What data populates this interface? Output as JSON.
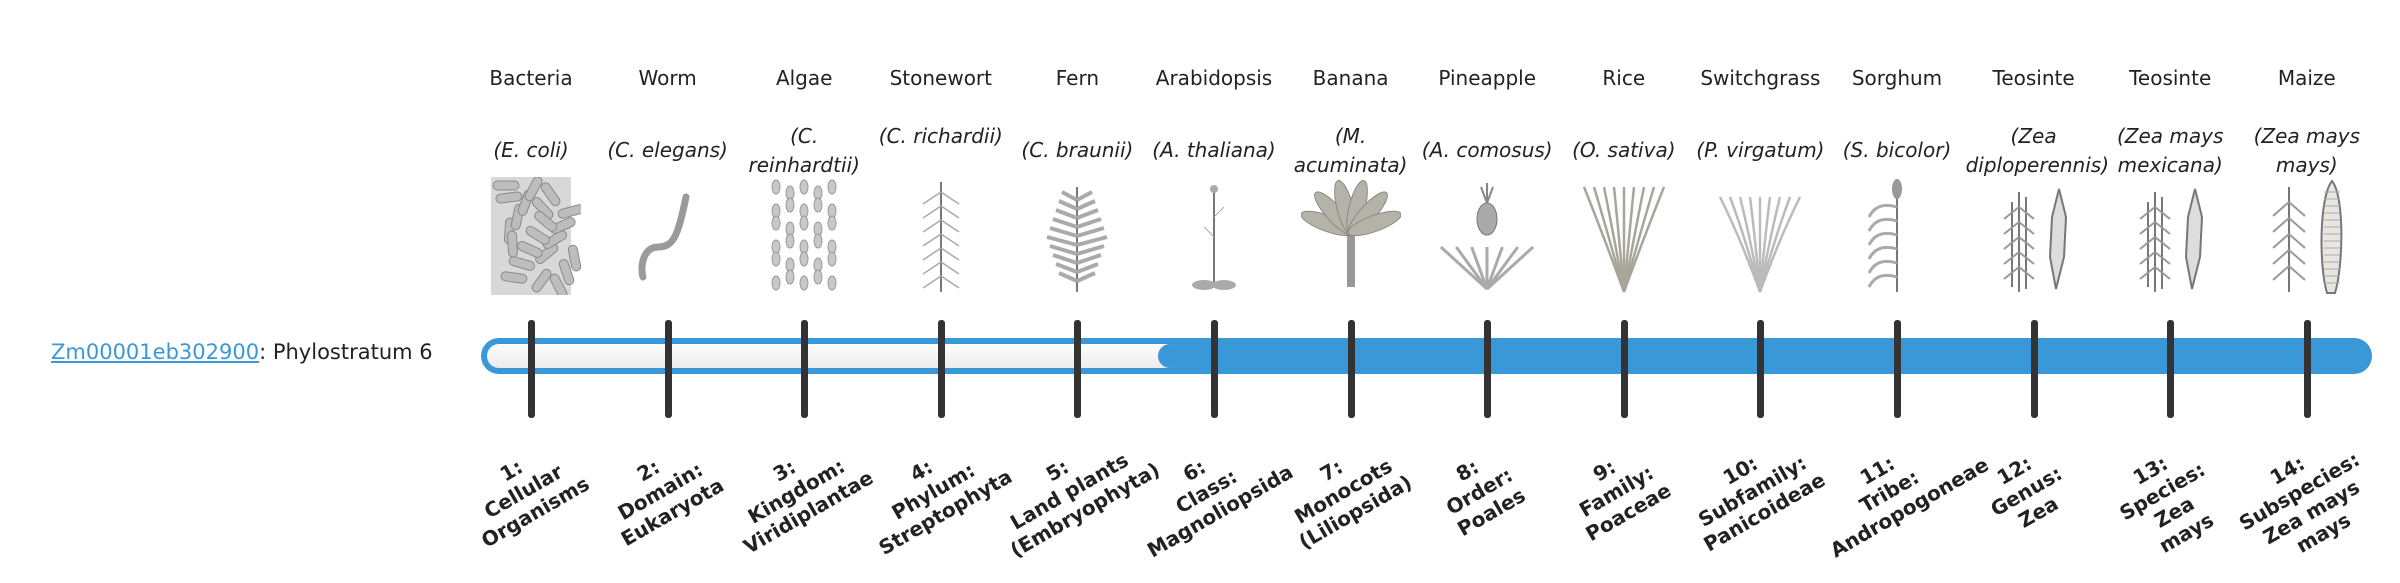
{
  "gene": {
    "id": "Zm00001eb302900",
    "separator": ": ",
    "phylostratum_label": "Phylostratum 6",
    "phylostratum": 6,
    "total_strata": 14
  },
  "colors": {
    "accent": "#3a98d8",
    "tick": "#333333"
  },
  "organisms": [
    {
      "name": "Bacteria",
      "species": "(E. coli)",
      "icon": "bacteria-rods"
    },
    {
      "name": "Worm",
      "species": "(C. elegans)",
      "icon": "worm"
    },
    {
      "name": "Algae",
      "species": "(C. reinhardtii)",
      "icon": "algae-cells"
    },
    {
      "name": "Stonewort",
      "species": "(C. richardii)",
      "icon": "stonewort"
    },
    {
      "name": "Fern",
      "species": "(C. braunii)",
      "icon": "fern"
    },
    {
      "name": "Arabidopsis",
      "species": "(A. thaliana)",
      "icon": "arabidopsis"
    },
    {
      "name": "Banana",
      "species": "(M. acuminata)",
      "icon": "banana-plant"
    },
    {
      "name": "Pineapple",
      "species": "(A. comosus)",
      "icon": "pineapple"
    },
    {
      "name": "Rice",
      "species": "(O. sativa)",
      "icon": "rice"
    },
    {
      "name": "Switchgrass",
      "species": "(P. virgatum)",
      "icon": "switchgrass"
    },
    {
      "name": "Sorghum",
      "species": "(S. bicolor)",
      "icon": "sorghum"
    },
    {
      "name": "Teosinte",
      "species": "(Zea diploperennis)",
      "icon": "teosinte"
    },
    {
      "name": "Teosinte",
      "species": "(Zea mays mexicana)",
      "icon": "teosinte"
    },
    {
      "name": "Maize",
      "species": "(Zea mays mays)",
      "icon": "maize"
    }
  ],
  "strata": [
    {
      "lines": [
        "1:",
        "Cellular",
        "Organisms"
      ]
    },
    {
      "lines": [
        "2:",
        "Domain:",
        "Eukaryota"
      ]
    },
    {
      "lines": [
        "3:",
        "Kingdom:",
        "Viridiplantae"
      ]
    },
    {
      "lines": [
        "4:",
        "Phylum:",
        "Streptophyta"
      ]
    },
    {
      "lines": [
        "5:",
        "Land plants",
        "(Embryophyta)"
      ]
    },
    {
      "lines": [
        "6:",
        "Class:",
        "Magnoliopsida"
      ]
    },
    {
      "lines": [
        "7:",
        "Monocots",
        "(Liliopsida)"
      ]
    },
    {
      "lines": [
        "8:",
        "Order:",
        "Poales"
      ]
    },
    {
      "lines": [
        "9:",
        "Family:",
        "Poaceae"
      ]
    },
    {
      "lines": [
        "10:",
        "Subfamily:",
        "Panicoideae"
      ]
    },
    {
      "lines": [
        "11:",
        "Tribe:",
        "Andropogoneae"
      ]
    },
    {
      "lines": [
        "12:",
        "Genus:",
        "Zea"
      ]
    },
    {
      "lines": [
        "13:",
        "Species:",
        "Zea",
        "mays"
      ]
    },
    {
      "lines": [
        "14:",
        "Subspecies:",
        "Zea mays",
        "mays"
      ]
    }
  ]
}
